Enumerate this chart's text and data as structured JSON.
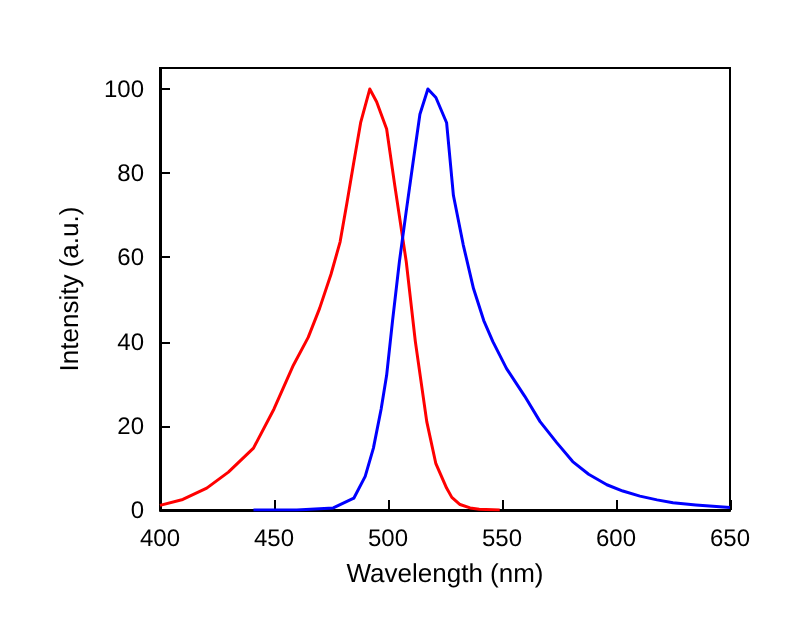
{
  "chart_data": {
    "type": "line",
    "xlabel": "Wavelength (nm)",
    "ylabel": "Intensity (a.u.)",
    "xlim": [
      400,
      650
    ],
    "xticks": [
      400,
      450,
      500,
      550,
      600,
      650
    ],
    "ylim": [
      0,
      105
    ],
    "yticks": [
      0,
      20,
      40,
      60,
      80,
      100
    ],
    "grid": false,
    "marker": "none",
    "line_style": "solid",
    "series": [
      {
        "color": "#ff0000",
        "x": [
          400,
          410,
          420.5,
          430,
          441,
          450,
          458.5,
          465,
          470,
          475,
          479,
          482,
          485,
          488,
          492,
          495,
          499.4,
          503,
          508,
          512,
          517,
          521,
          525.7,
          528,
          531.6,
          536,
          540,
          549
        ],
        "values": [
          1.1,
          2.5,
          5.2,
          9,
          14.7,
          24,
          34.4,
          41,
          47.9,
          56,
          63.7,
          73,
          82.6,
          92,
          100,
          97,
          90.5,
          77,
          59,
          40,
          21,
          11,
          5.2,
          3,
          1.3,
          0.5,
          0.2,
          0
        ]
      },
      {
        "color": "#0000ff",
        "x": [
          441,
          460,
          476,
          485,
          490,
          493.6,
          497,
          499.4,
          502,
          505,
          508,
          511,
          514,
          517.5,
          521,
          525.7,
          528.7,
          533,
          537.5,
          542,
          546,
          552,
          560,
          566.7,
          574,
          581,
          588,
          596,
          603,
          610.5,
          618,
          625,
          635,
          650
        ],
        "values": [
          0,
          0,
          0.5,
          2.8,
          8,
          14.7,
          24,
          32,
          45,
          59,
          71,
          82.6,
          94,
          100,
          98,
          92,
          74.7,
          63,
          52.6,
          45,
          40,
          33.6,
          27,
          21,
          16,
          11.5,
          8.5,
          6,
          4.5,
          3.3,
          2.4,
          1.7,
          1.2,
          0.6
        ]
      }
    ]
  }
}
